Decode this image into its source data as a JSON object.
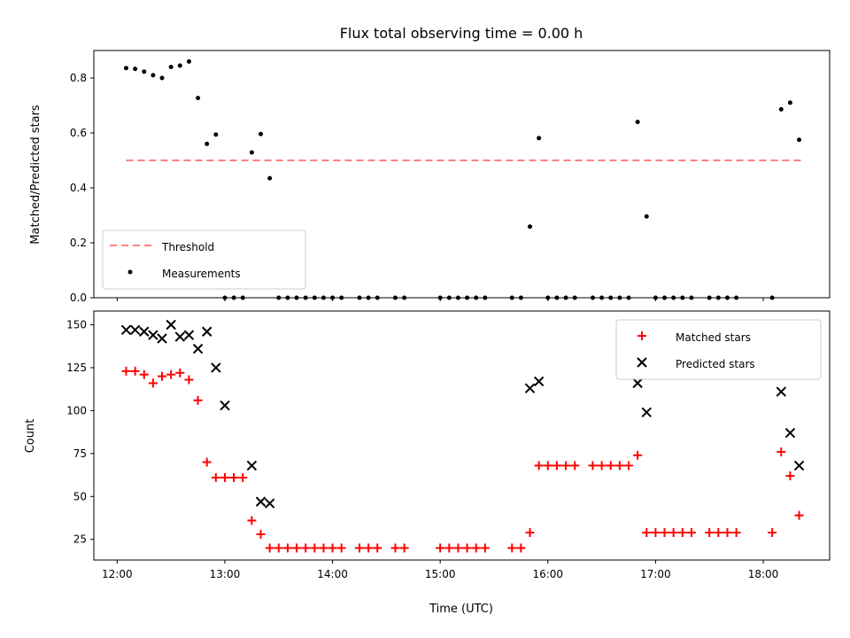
{
  "chart_data": [
    {
      "type": "scatter",
      "title": "Flux total observing time = 0.00 h",
      "xlabel": "",
      "ylabel": "Matched/Predicted stars",
      "ylim": [
        0.0,
        0.9
      ],
      "yticks": [
        "0.0",
        "0.2",
        "0.4",
        "0.6",
        "0.8"
      ],
      "grid": false,
      "legend_position": "lower-left",
      "threshold": {
        "name": "Threshold",
        "value": 0.5,
        "x_range": [
          "12:05",
          "18:22"
        ],
        "color": "#ff7f7f",
        "style": "dashed"
      },
      "series": [
        {
          "name": "Measurements",
          "color": "#000000",
          "marker": "dot",
          "points": [
            [
              "12:05",
              0.836
            ],
            [
              "12:10",
              0.833
            ],
            [
              "12:15",
              0.823
            ],
            [
              "12:20",
              0.81
            ],
            [
              "12:25",
              0.8
            ],
            [
              "12:30",
              0.84
            ],
            [
              "12:35",
              0.845
            ],
            [
              "12:40",
              0.86
            ],
            [
              "12:45",
              0.727
            ],
            [
              "12:50",
              0.56
            ],
            [
              "12:55",
              0.594
            ],
            [
              "13:00",
              0.0
            ],
            [
              "13:05",
              0.0
            ],
            [
              "13:10",
              0.0
            ],
            [
              "13:15",
              0.529
            ],
            [
              "13:20",
              0.596
            ],
            [
              "13:25",
              0.435
            ],
            [
              "13:30",
              0.0
            ],
            [
              "13:35",
              0.0
            ],
            [
              "13:40",
              0.0
            ],
            [
              "13:45",
              0.0
            ],
            [
              "13:50",
              0.0
            ],
            [
              "13:55",
              0.0
            ],
            [
              "14:00",
              0.0
            ],
            [
              "14:05",
              0.0
            ],
            [
              "14:15",
              0.0
            ],
            [
              "14:20",
              0.0
            ],
            [
              "14:25",
              0.0
            ],
            [
              "14:35",
              0.0
            ],
            [
              "14:40",
              0.0
            ],
            [
              "15:00",
              0.0
            ],
            [
              "15:05",
              0.0
            ],
            [
              "15:10",
              0.0
            ],
            [
              "15:15",
              0.0
            ],
            [
              "15:20",
              0.0
            ],
            [
              "15:25",
              0.0
            ],
            [
              "15:40",
              0.0
            ],
            [
              "15:45",
              0.0
            ],
            [
              "15:50",
              0.259
            ],
            [
              "15:55",
              0.581
            ],
            [
              "16:00",
              0.0
            ],
            [
              "16:05",
              0.0
            ],
            [
              "16:10",
              0.0
            ],
            [
              "16:15",
              0.0
            ],
            [
              "16:25",
              0.0
            ],
            [
              "16:30",
              0.0
            ],
            [
              "16:35",
              0.0
            ],
            [
              "16:40",
              0.0
            ],
            [
              "16:45",
              0.0
            ],
            [
              "16:50",
              0.64
            ],
            [
              "16:55",
              0.296
            ],
            [
              "17:00",
              0.0
            ],
            [
              "17:05",
              0.0
            ],
            [
              "17:10",
              0.0
            ],
            [
              "17:15",
              0.0
            ],
            [
              "17:20",
              0.0
            ],
            [
              "17:30",
              0.0
            ],
            [
              "17:35",
              0.0
            ],
            [
              "17:40",
              0.0
            ],
            [
              "17:45",
              0.0
            ],
            [
              "18:05",
              0.0
            ],
            [
              "18:10",
              0.686
            ],
            [
              "18:15",
              0.71
            ],
            [
              "18:20",
              0.575
            ]
          ]
        }
      ]
    },
    {
      "type": "scatter",
      "title": "",
      "xlabel": "Time (UTC)",
      "ylabel": "Count",
      "ylim": [
        13,
        158
      ],
      "yticks": [
        "25",
        "50",
        "75",
        "100",
        "125",
        "150"
      ],
      "xlim": [
        "11:47",
        "18:37"
      ],
      "xticks": [
        "12:00",
        "13:00",
        "14:00",
        "15:00",
        "16:00",
        "17:00",
        "18:00"
      ],
      "grid": false,
      "legend_position": "upper-right",
      "series": [
        {
          "name": "Matched stars",
          "color": "#ff0000",
          "marker": "plus",
          "points": [
            [
              "12:05",
              123
            ],
            [
              "12:10",
              123
            ],
            [
              "12:15",
              121
            ],
            [
              "12:20",
              116
            ],
            [
              "12:25",
              120
            ],
            [
              "12:30",
              121
            ],
            [
              "12:35",
              122
            ],
            [
              "12:40",
              118
            ],
            [
              "12:45",
              106
            ],
            [
              "12:50",
              70
            ],
            [
              "12:55",
              61
            ],
            [
              "13:00",
              61
            ],
            [
              "13:05",
              61
            ],
            [
              "13:10",
              61
            ],
            [
              "13:15",
              36
            ],
            [
              "13:20",
              28
            ],
            [
              "13:25",
              20
            ],
            [
              "13:30",
              20
            ],
            [
              "13:35",
              20
            ],
            [
              "13:40",
              20
            ],
            [
              "13:45",
              20
            ],
            [
              "13:50",
              20
            ],
            [
              "13:55",
              20
            ],
            [
              "14:00",
              20
            ],
            [
              "14:05",
              20
            ],
            [
              "14:15",
              20
            ],
            [
              "14:20",
              20
            ],
            [
              "14:25",
              20
            ],
            [
              "14:35",
              20
            ],
            [
              "14:40",
              20
            ],
            [
              "15:00",
              20
            ],
            [
              "15:05",
              20
            ],
            [
              "15:10",
              20
            ],
            [
              "15:15",
              20
            ],
            [
              "15:20",
              20
            ],
            [
              "15:25",
              20
            ],
            [
              "15:40",
              20
            ],
            [
              "15:45",
              20
            ],
            [
              "15:50",
              29
            ],
            [
              "15:55",
              68
            ],
            [
              "16:00",
              68
            ],
            [
              "16:05",
              68
            ],
            [
              "16:10",
              68
            ],
            [
              "16:15",
              68
            ],
            [
              "16:25",
              68
            ],
            [
              "16:30",
              68
            ],
            [
              "16:35",
              68
            ],
            [
              "16:40",
              68
            ],
            [
              "16:45",
              68
            ],
            [
              "16:50",
              74
            ],
            [
              "16:55",
              29
            ],
            [
              "17:00",
              29
            ],
            [
              "17:05",
              29
            ],
            [
              "17:10",
              29
            ],
            [
              "17:15",
              29
            ],
            [
              "17:20",
              29
            ],
            [
              "17:30",
              29
            ],
            [
              "17:35",
              29
            ],
            [
              "17:40",
              29
            ],
            [
              "17:45",
              29
            ],
            [
              "18:05",
              29
            ],
            [
              "18:10",
              76
            ],
            [
              "18:15",
              62
            ],
            [
              "18:20",
              39
            ]
          ]
        },
        {
          "name": "Predicted stars",
          "color": "#000000",
          "marker": "x",
          "points": [
            [
              "12:05",
              147
            ],
            [
              "12:10",
              147
            ],
            [
              "12:15",
              146
            ],
            [
              "12:20",
              144
            ],
            [
              "12:25",
              142
            ],
            [
              "12:30",
              150
            ],
            [
              "12:35",
              143
            ],
            [
              "12:40",
              144
            ],
            [
              "12:45",
              136
            ],
            [
              "12:50",
              146
            ],
            [
              "12:55",
              125
            ],
            [
              "13:00",
              103
            ],
            [
              "13:15",
              68
            ],
            [
              "13:20",
              47
            ],
            [
              "13:25",
              46
            ],
            [
              "15:50",
              113
            ],
            [
              "15:55",
              117
            ],
            [
              "16:50",
              116
            ],
            [
              "16:55",
              99
            ],
            [
              "18:10",
              111
            ],
            [
              "18:15",
              87
            ],
            [
              "18:20",
              68
            ]
          ]
        }
      ]
    }
  ]
}
